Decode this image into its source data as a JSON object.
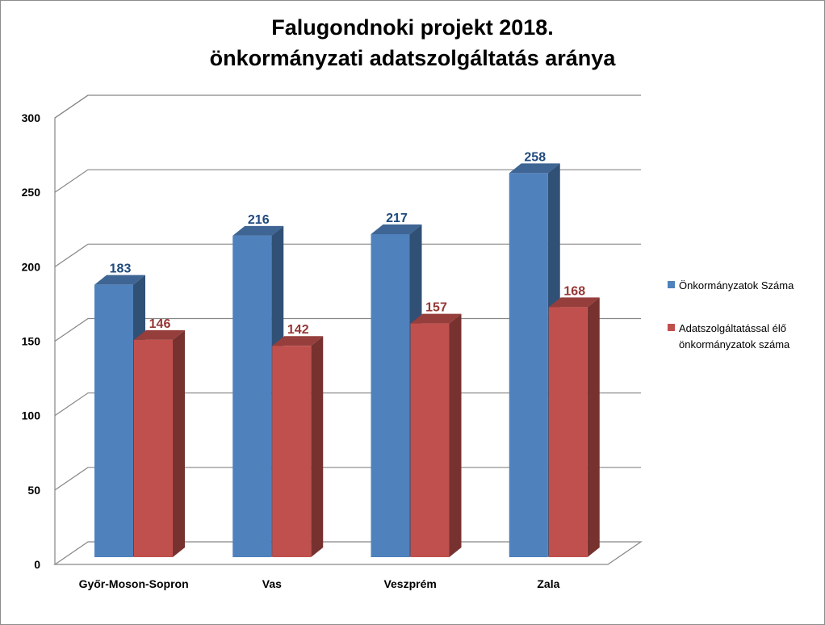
{
  "chart_data": {
    "type": "bar",
    "title": [
      "Falugondnoki projekt 2018.",
      "önkormányzati adatszolgáltatás aránya"
    ],
    "categories": [
      "Győr-Moson-Sopron",
      "Vas",
      "Veszprém",
      "Zala"
    ],
    "series": [
      {
        "name": "Önkormányzatok Száma",
        "values": [
          183,
          216,
          217,
          258
        ],
        "color": "#4f81bd",
        "label_color": "#1f497d"
      },
      {
        "name": "Adatszolgáltatással élő önkormányzatok száma",
        "values": [
          146,
          142,
          157,
          168
        ],
        "color": "#c0504d",
        "label_color": "#953735"
      }
    ],
    "ylim": [
      0,
      300
    ],
    "yticks": [
      0,
      50,
      100,
      150,
      200,
      250,
      300
    ],
    "grid": true,
    "legend": "right",
    "style": "3d-clustered-column"
  }
}
